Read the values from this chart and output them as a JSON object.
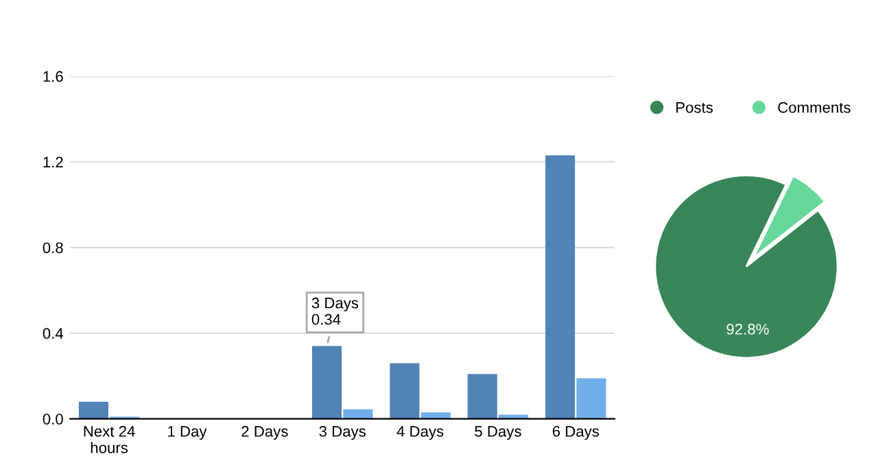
{
  "chart_data": [
    {
      "type": "bar",
      "categories": [
        "Next 24\nhours",
        "1 Day",
        "2 Days",
        "3 Days",
        "4 Days",
        "5 Days",
        "6 Days"
      ],
      "series": [
        {
          "color": "#5183b6",
          "values": [
            0.08,
            0,
            0,
            0.34,
            0.26,
            0.21,
            1.23
          ]
        },
        {
          "color": "#72aeea",
          "values": [
            0.01,
            0,
            0,
            0.045,
            0.03,
            0.02,
            0.19
          ]
        }
      ],
      "ylim": [
        0,
        1.6
      ],
      "yticks": [
        {
          "value": 0,
          "label": "0.0"
        },
        0.4,
        0.8,
        1.2,
        1.6
      ],
      "grid": "y",
      "annotations": [
        {
          "text": "3 Days\n0.34",
          "x": "3 Days",
          "y": 0.34
        }
      ]
    },
    {
      "type": "pie",
      "categories": [
        "Posts",
        "Comments"
      ],
      "values": [
        92.8,
        7.2
      ],
      "colors": [
        "#38865a",
        "#67d89b"
      ],
      "value_labels": [
        "92.8%",
        null
      ],
      "legend": "top"
    }
  ]
}
